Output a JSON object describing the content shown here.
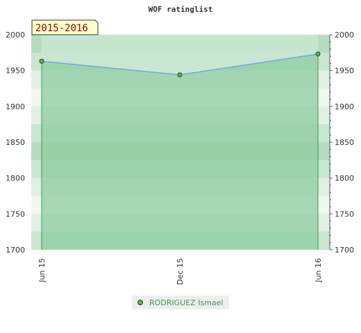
{
  "chart_data": {
    "type": "area",
    "title": "WOF ratinglist",
    "period_label": "2015-2016",
    "categories": [
      "Jun 15",
      "Dec 15",
      "Jun 16"
    ],
    "x_positions": [
      0,
      0.5,
      1
    ],
    "series": [
      {
        "name": "RODRIGUEZ Ismael",
        "values": [
          1963,
          1944,
          1973
        ]
      }
    ],
    "ylim": [
      1700,
      2000
    ],
    "y_ticks": [
      1700,
      1750,
      1800,
      1850,
      1900,
      1950,
      2000
    ],
    "y_axes": "left-and-right",
    "legend": "bottom-center",
    "colors": {
      "line": "#6fa8dc",
      "fill_top": "#c8e6d0",
      "fill": "#8fcca0",
      "drop_line": "#3a9a50",
      "marker": "#5faf6b",
      "badge_bg": "#ffffcc",
      "badge_text": "#8b0000"
    }
  }
}
